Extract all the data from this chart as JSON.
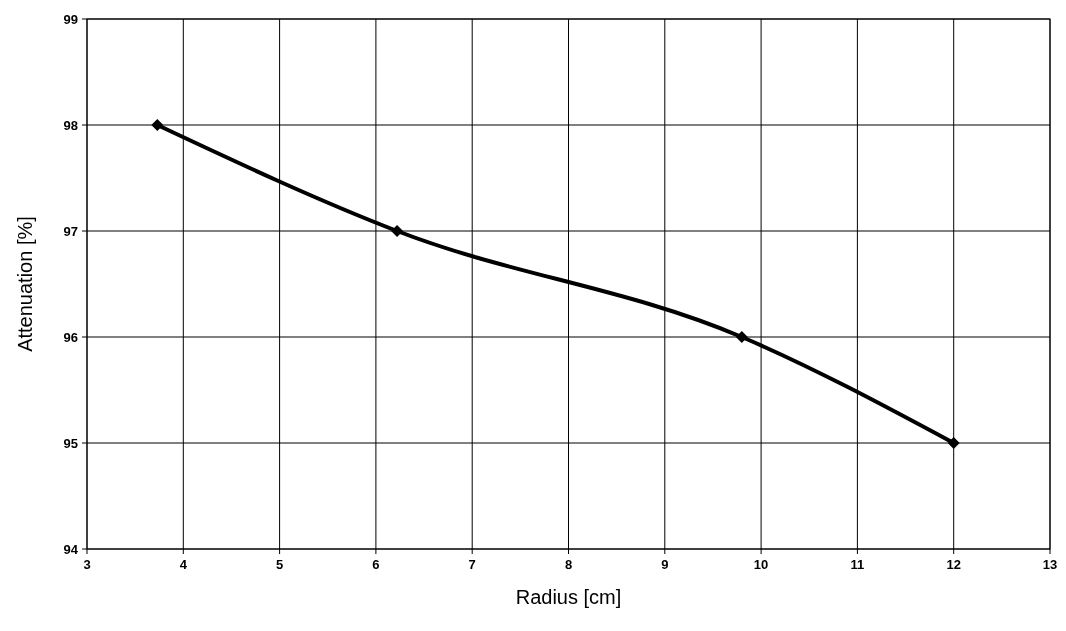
{
  "chart_data": {
    "type": "line",
    "xlabel": "Radius [cm]",
    "ylabel": "Attenuation [%]",
    "x": [
      3.73,
      6.22,
      9.8,
      12
    ],
    "series": [
      {
        "color": "#000000",
        "values": [
          98,
          97,
          96,
          95
        ]
      }
    ],
    "xlim": [
      3,
      13
    ],
    "xticks": [
      3,
      4,
      5,
      6,
      7,
      8,
      9,
      10,
      11,
      12,
      13
    ],
    "ylim": [
      94,
      99
    ],
    "yticks": [
      94,
      95,
      96,
      97,
      98,
      99
    ],
    "grid": true,
    "marker": "diamond",
    "line_style": "solid"
  }
}
